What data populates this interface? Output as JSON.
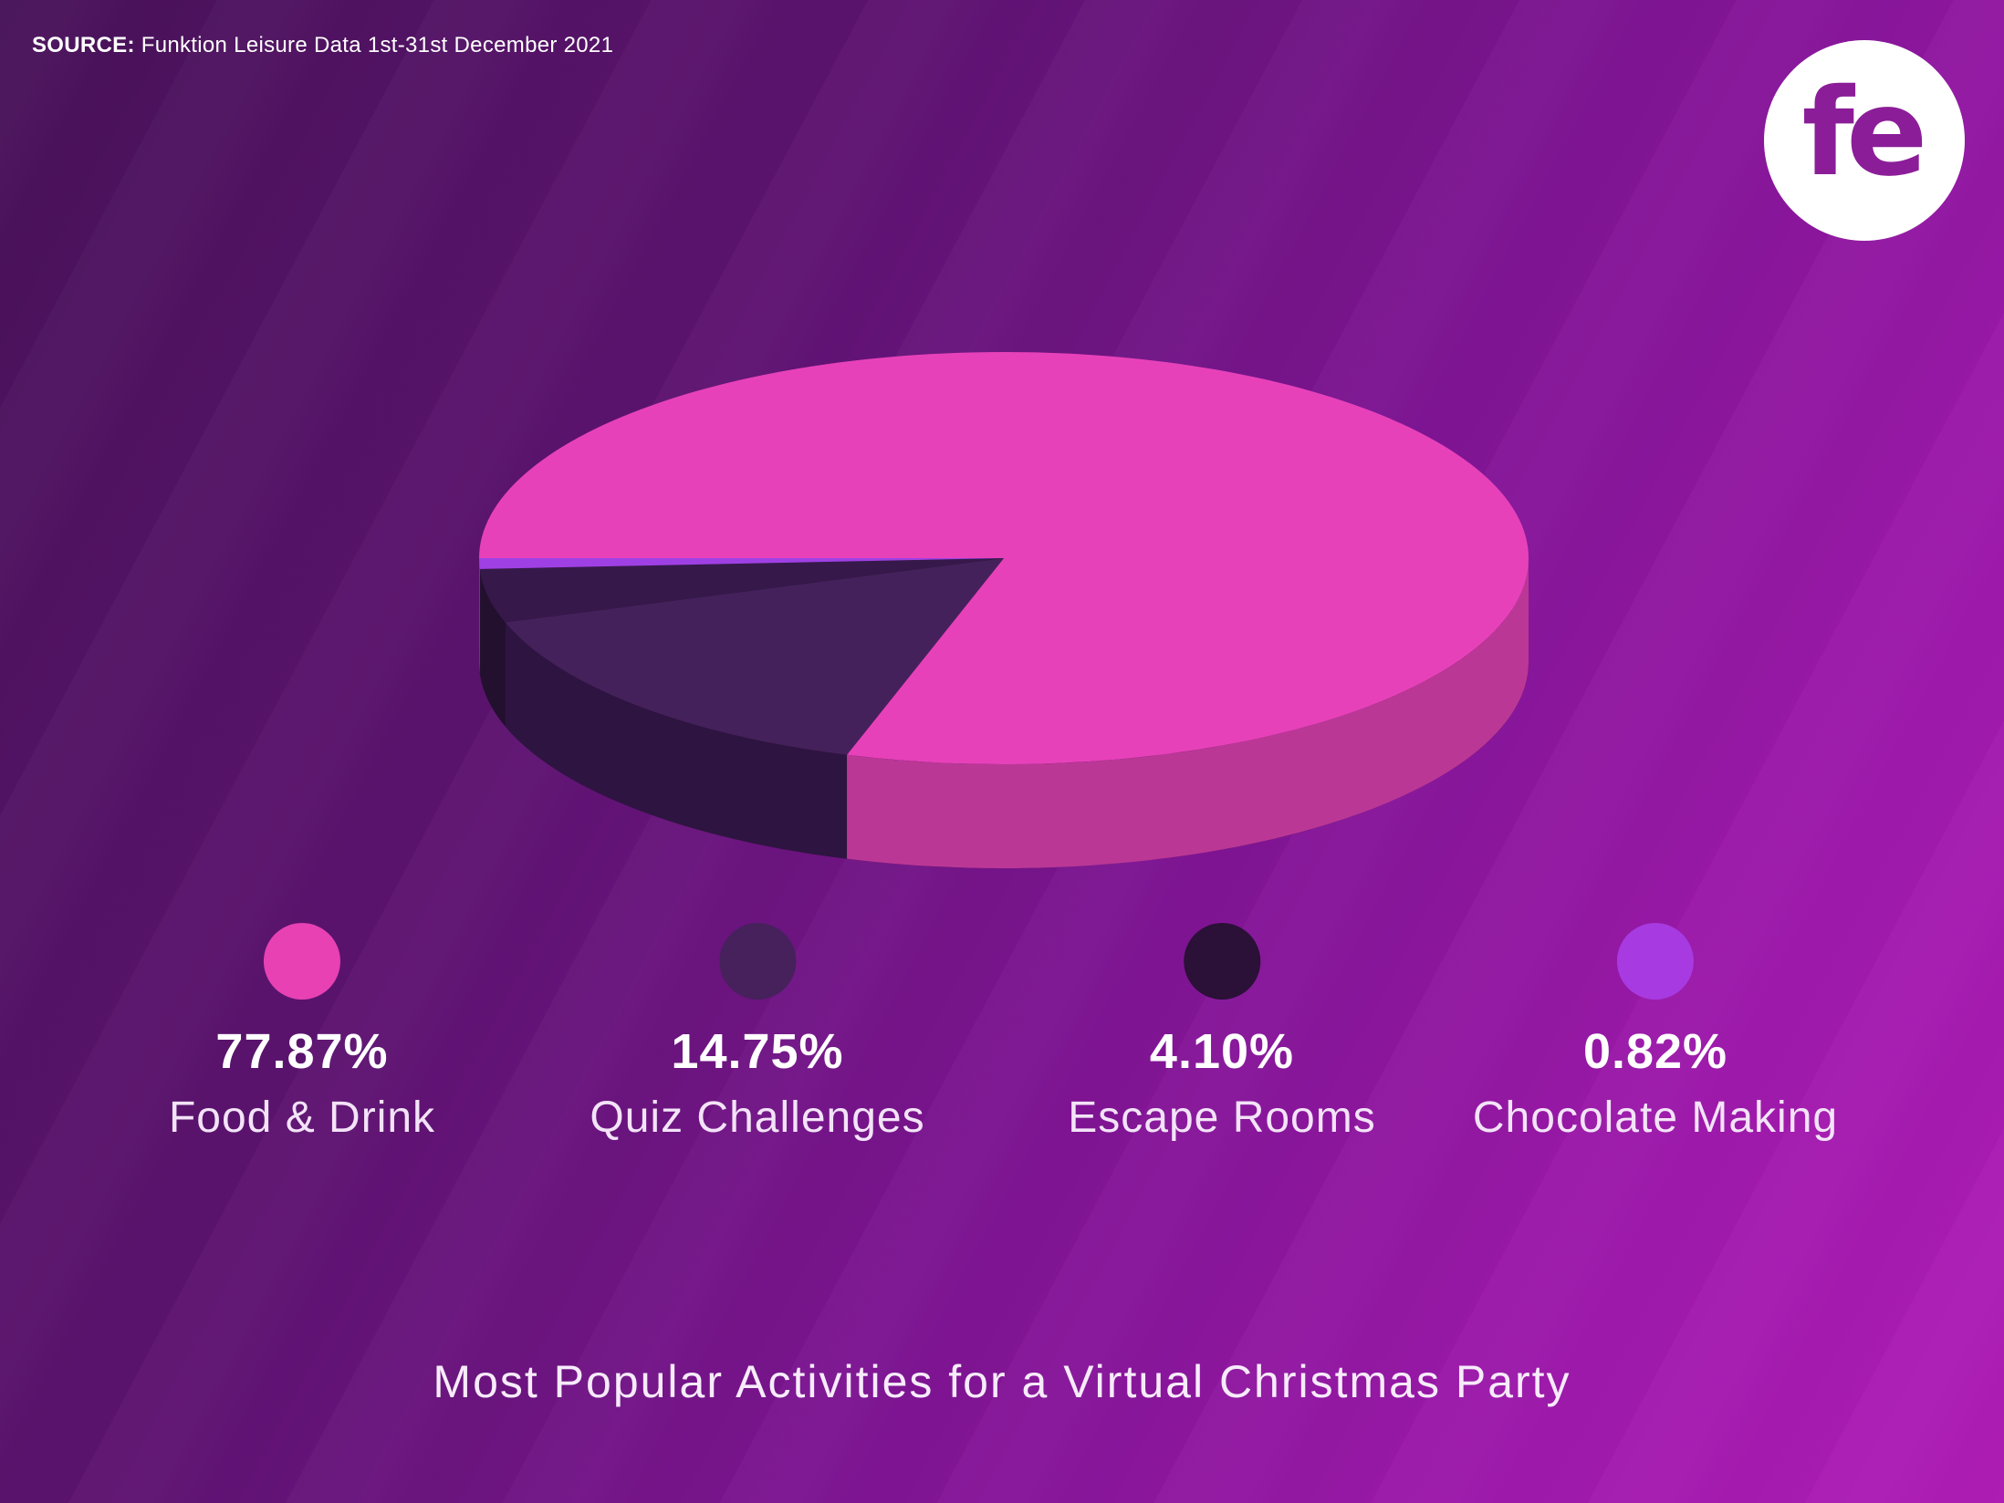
{
  "source": {
    "label": "SOURCE:",
    "text": " Funktion Leisure Data 1st-31st December 2021"
  },
  "logo": {
    "text": "fe"
  },
  "title": "Most Popular Activities for a Virtual Christmas Party",
  "background": {
    "gradient_start": "#481259",
    "gradient_end": "#b01db7"
  },
  "logo_colors": {
    "circle": "#ffffff",
    "text": "#8b1e98"
  },
  "chart_data": {
    "type": "pie",
    "style": "3d",
    "title": "Most Popular Activities for a Virtual Christmas Party",
    "unit": "%",
    "start_angle_deg": 180,
    "direction": "clockwise",
    "legend_position": "bottom",
    "slices": [
      {
        "slug": "food-drink",
        "label": "Food & Drink",
        "value": 77.87,
        "display": "77.87%",
        "color_top": "#e741ba",
        "color_side": "#bb3796",
        "color_dot": "#e741b4"
      },
      {
        "slug": "quiz-challenges",
        "label": "Quiz Challenges",
        "value": 14.75,
        "display": "14.75%",
        "color_top": "#45215c",
        "color_side": "#2e1440",
        "color_dot": "#46215c"
      },
      {
        "slug": "escape-rooms",
        "label": "Escape Rooms",
        "value": 4.1,
        "display": "4.10%",
        "color_top": "#36194a",
        "color_side": "#23102f",
        "color_dot": "#2b1037"
      },
      {
        "slug": "chocolate-making",
        "label": "Chocolate Making",
        "value": 0.82,
        "display": "0.82%",
        "color_top": "#9f40e4",
        "color_side": "#8630c6",
        "color_dot": "#a73ae0"
      }
    ],
    "base_color": "#200d30"
  }
}
